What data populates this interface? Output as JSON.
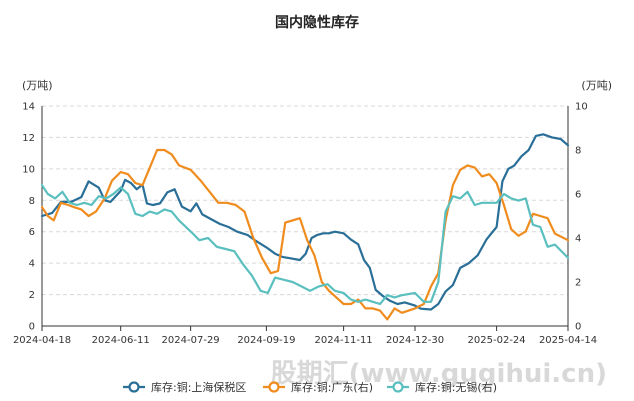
{
  "watermark": "股期汇(www.gugihui.cn)",
  "chart_data": {
    "type": "line",
    "title": "国内隐性库存",
    "left_axis": {
      "unit": "(万吨)",
      "min": 0,
      "max": 14,
      "ticks": [
        0,
        2,
        4,
        6,
        8,
        10,
        12,
        14
      ]
    },
    "right_axis": {
      "unit": "(万吨)",
      "min": 0,
      "max": 10,
      "ticks": [
        0,
        2,
        4,
        6,
        8,
        10
      ]
    },
    "x_range": [
      "2024-04-18",
      "2025-04-14"
    ],
    "x_ticks": [
      "2024-04-18",
      "2024-06-11",
      "2024-07-29",
      "2024-09-19",
      "2024-11-11",
      "2024-12-30",
      "2025-02-24",
      "2025-04-14"
    ],
    "grid": "horizontal-dashed",
    "legend_position": "bottom",
    "series": [
      {
        "name": "库存:铜:上海保税区",
        "axis": "left",
        "color": "#2a6f97",
        "points": [
          [
            "2024-04-18",
            7.0
          ],
          [
            "2024-04-25",
            7.2
          ],
          [
            "2024-05-01",
            7.9
          ],
          [
            "2024-05-08",
            7.9
          ],
          [
            "2024-05-15",
            8.2
          ],
          [
            "2024-05-20",
            9.2
          ],
          [
            "2024-05-27",
            8.8
          ],
          [
            "2024-05-31",
            8.0
          ],
          [
            "2024-06-04",
            7.9
          ],
          [
            "2024-06-08",
            8.3
          ],
          [
            "2024-06-11",
            8.6
          ],
          [
            "2024-06-14",
            9.3
          ],
          [
            "2024-06-18",
            9.1
          ],
          [
            "2024-06-22",
            8.7
          ],
          [
            "2024-06-26",
            9.0
          ],
          [
            "2024-06-29",
            7.8
          ],
          [
            "2024-07-03",
            7.7
          ],
          [
            "2024-07-08",
            7.8
          ],
          [
            "2024-07-13",
            8.5
          ],
          [
            "2024-07-18",
            8.7
          ],
          [
            "2024-07-23",
            7.6
          ],
          [
            "2024-07-29",
            7.3
          ],
          [
            "2024-08-02",
            7.8
          ],
          [
            "2024-08-06",
            7.1
          ],
          [
            "2024-08-12",
            6.8
          ],
          [
            "2024-08-18",
            6.5
          ],
          [
            "2024-08-24",
            6.3
          ],
          [
            "2024-08-30",
            6.0
          ],
          [
            "2024-09-06",
            5.8
          ],
          [
            "2024-09-12",
            5.4
          ],
          [
            "2024-09-19",
            5.0
          ],
          [
            "2024-09-25",
            4.6
          ],
          [
            "2024-09-30",
            4.4
          ],
          [
            "2024-10-06",
            4.3
          ],
          [
            "2024-10-12",
            4.2
          ],
          [
            "2024-10-16",
            4.6
          ],
          [
            "2024-10-20",
            5.6
          ],
          [
            "2024-10-24",
            5.8
          ],
          [
            "2024-10-28",
            5.9
          ],
          [
            "2024-11-01",
            5.9
          ],
          [
            "2024-11-05",
            6.0
          ],
          [
            "2024-11-11",
            5.9
          ],
          [
            "2024-11-16",
            5.5
          ],
          [
            "2024-11-21",
            5.2
          ],
          [
            "2024-11-25",
            4.2
          ],
          [
            "2024-11-29",
            3.7
          ],
          [
            "2024-12-03",
            2.3
          ],
          [
            "2024-12-08",
            1.9
          ],
          [
            "2024-12-13",
            1.6
          ],
          [
            "2024-12-18",
            1.4
          ],
          [
            "2024-12-23",
            1.5
          ],
          [
            "2024-12-30",
            1.3
          ],
          [
            "2025-01-03",
            1.1
          ],
          [
            "2025-01-10",
            1.05
          ],
          [
            "2025-01-15",
            1.4
          ],
          [
            "2025-01-20",
            2.2
          ],
          [
            "2025-01-25",
            2.6
          ],
          [
            "2025-01-30",
            3.7
          ],
          [
            "2025-02-05",
            4.0
          ],
          [
            "2025-02-11",
            4.5
          ],
          [
            "2025-02-17",
            5.5
          ],
          [
            "2025-02-24",
            6.3
          ],
          [
            "2025-02-28",
            9.2
          ],
          [
            "2025-03-04",
            10.0
          ],
          [
            "2025-03-08",
            10.2
          ],
          [
            "2025-03-13",
            10.8
          ],
          [
            "2025-03-18",
            11.2
          ],
          [
            "2025-03-23",
            12.1
          ],
          [
            "2025-03-28",
            12.2
          ],
          [
            "2025-04-03",
            12.0
          ],
          [
            "2025-04-09",
            11.9
          ],
          [
            "2025-04-14",
            11.5
          ]
        ]
      },
      {
        "name": "库存:铜:广东(右)",
        "axis": "right",
        "color": "#f08c1e",
        "points": [
          [
            "2024-04-18",
            5.4
          ],
          [
            "2024-04-22",
            5.0
          ],
          [
            "2024-04-26",
            4.8
          ],
          [
            "2024-05-01",
            5.6
          ],
          [
            "2024-05-06",
            5.5
          ],
          [
            "2024-05-10",
            5.4
          ],
          [
            "2024-05-15",
            5.3
          ],
          [
            "2024-05-20",
            5.0
          ],
          [
            "2024-05-25",
            5.2
          ],
          [
            "2024-05-31",
            5.8
          ],
          [
            "2024-06-05",
            6.6
          ],
          [
            "2024-06-11",
            7.0
          ],
          [
            "2024-06-16",
            6.9
          ],
          [
            "2024-06-21",
            6.5
          ],
          [
            "2024-06-26",
            6.4
          ],
          [
            "2024-07-01",
            7.2
          ],
          [
            "2024-07-06",
            8.0
          ],
          [
            "2024-07-11",
            8.0
          ],
          [
            "2024-07-16",
            7.8
          ],
          [
            "2024-07-21",
            7.3
          ],
          [
            "2024-07-29",
            7.1
          ],
          [
            "2024-08-05",
            6.6
          ],
          [
            "2024-08-11",
            6.1
          ],
          [
            "2024-08-17",
            5.6
          ],
          [
            "2024-08-23",
            5.6
          ],
          [
            "2024-08-29",
            5.5
          ],
          [
            "2024-09-04",
            5.2
          ],
          [
            "2024-09-10",
            4.0
          ],
          [
            "2024-09-16",
            3.1
          ],
          [
            "2024-09-22",
            2.4
          ],
          [
            "2024-09-27",
            2.5
          ],
          [
            "2024-10-02",
            4.7
          ],
          [
            "2024-10-07",
            4.8
          ],
          [
            "2024-10-12",
            4.9
          ],
          [
            "2024-10-17",
            3.9
          ],
          [
            "2024-10-22",
            3.2
          ],
          [
            "2024-10-27",
            2.0
          ],
          [
            "2024-11-01",
            1.6
          ],
          [
            "2024-11-06",
            1.3
          ],
          [
            "2024-11-11",
            1.0
          ],
          [
            "2024-11-16",
            1.0
          ],
          [
            "2024-11-21",
            1.2
          ],
          [
            "2024-11-26",
            0.8
          ],
          [
            "2024-12-01",
            0.8
          ],
          [
            "2024-12-06",
            0.7
          ],
          [
            "2024-12-11",
            0.3
          ],
          [
            "2024-12-16",
            0.8
          ],
          [
            "2024-12-21",
            0.6
          ],
          [
            "2024-12-30",
            0.8
          ],
          [
            "2025-01-05",
            1.0
          ],
          [
            "2025-01-10",
            1.8
          ],
          [
            "2025-01-15",
            2.4
          ],
          [
            "2025-01-20",
            4.8
          ],
          [
            "2025-01-25",
            6.4
          ],
          [
            "2025-01-30",
            7.1
          ],
          [
            "2025-02-04",
            7.3
          ],
          [
            "2025-02-09",
            7.2
          ],
          [
            "2025-02-14",
            6.8
          ],
          [
            "2025-02-19",
            6.9
          ],
          [
            "2025-02-24",
            6.5
          ],
          [
            "2025-03-01",
            5.5
          ],
          [
            "2025-03-06",
            4.4
          ],
          [
            "2025-03-11",
            4.1
          ],
          [
            "2025-03-16",
            4.3
          ],
          [
            "2025-03-21",
            5.1
          ],
          [
            "2025-03-26",
            5.0
          ],
          [
            "2025-03-31",
            4.9
          ],
          [
            "2025-04-05",
            4.2
          ],
          [
            "2025-04-14",
            3.9
          ]
        ]
      },
      {
        "name": "库存:铜:无锡(右)",
        "axis": "right",
        "color": "#5bbfbf",
        "points": [
          [
            "2024-04-18",
            6.4
          ],
          [
            "2024-04-22",
            6.0
          ],
          [
            "2024-04-27",
            5.8
          ],
          [
            "2024-05-02",
            6.1
          ],
          [
            "2024-05-07",
            5.6
          ],
          [
            "2024-05-12",
            5.5
          ],
          [
            "2024-05-17",
            5.6
          ],
          [
            "2024-05-22",
            5.5
          ],
          [
            "2024-05-27",
            5.9
          ],
          [
            "2024-06-01",
            5.8
          ],
          [
            "2024-06-06",
            6.0
          ],
          [
            "2024-06-11",
            6.3
          ],
          [
            "2024-06-16",
            6.0
          ],
          [
            "2024-06-21",
            5.1
          ],
          [
            "2024-06-26",
            5.0
          ],
          [
            "2024-07-01",
            5.2
          ],
          [
            "2024-07-06",
            5.1
          ],
          [
            "2024-07-11",
            5.3
          ],
          [
            "2024-07-16",
            5.2
          ],
          [
            "2024-07-21",
            4.8
          ],
          [
            "2024-07-29",
            4.3
          ],
          [
            "2024-08-04",
            3.9
          ],
          [
            "2024-08-10",
            4.0
          ],
          [
            "2024-08-16",
            3.6
          ],
          [
            "2024-08-22",
            3.5
          ],
          [
            "2024-08-28",
            3.4
          ],
          [
            "2024-09-03",
            2.8
          ],
          [
            "2024-09-09",
            2.3
          ],
          [
            "2024-09-15",
            1.6
          ],
          [
            "2024-09-20",
            1.5
          ],
          [
            "2024-09-25",
            2.2
          ],
          [
            "2024-10-01",
            2.1
          ],
          [
            "2024-10-07",
            2.0
          ],
          [
            "2024-10-13",
            1.8
          ],
          [
            "2024-10-19",
            1.6
          ],
          [
            "2024-10-25",
            1.8
          ],
          [
            "2024-10-31",
            1.9
          ],
          [
            "2024-11-05",
            1.6
          ],
          [
            "2024-11-11",
            1.5
          ],
          [
            "2024-11-16",
            1.2
          ],
          [
            "2024-11-21",
            1.1
          ],
          [
            "2024-11-26",
            1.2
          ],
          [
            "2024-12-01",
            1.1
          ],
          [
            "2024-12-06",
            1.0
          ],
          [
            "2024-12-11",
            1.4
          ],
          [
            "2024-12-16",
            1.3
          ],
          [
            "2024-12-21",
            1.4
          ],
          [
            "2024-12-30",
            1.5
          ],
          [
            "2025-01-05",
            1.1
          ],
          [
            "2025-01-10",
            1.1
          ],
          [
            "2025-01-15",
            2.0
          ],
          [
            "2025-01-20",
            5.2
          ],
          [
            "2025-01-25",
            5.9
          ],
          [
            "2025-01-30",
            5.8
          ],
          [
            "2025-02-04",
            6.1
          ],
          [
            "2025-02-09",
            5.5
          ],
          [
            "2025-02-14",
            5.6
          ],
          [
            "2025-02-19",
            5.6
          ],
          [
            "2025-02-24",
            5.6
          ],
          [
            "2025-03-01",
            6.0
          ],
          [
            "2025-03-06",
            5.8
          ],
          [
            "2025-03-11",
            5.7
          ],
          [
            "2025-03-16",
            5.8
          ],
          [
            "2025-03-21",
            4.6
          ],
          [
            "2025-03-26",
            4.5
          ],
          [
            "2025-03-31",
            3.6
          ],
          [
            "2025-04-05",
            3.7
          ],
          [
            "2025-04-14",
            3.1
          ]
        ]
      }
    ]
  }
}
